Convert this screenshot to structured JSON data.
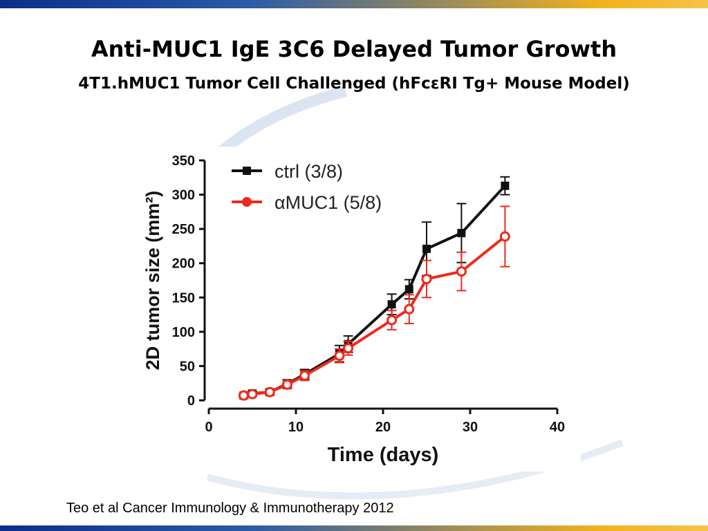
{
  "slide": {
    "title": "Anti-MUC1 IgE 3C6 Delayed Tumor Growth",
    "subtitle": "4T1.hMUC1 Tumor Cell Challenged (hFcεRI Tg+ Mouse Model)",
    "citation": "Teo et al Cancer Immunology  & Immunotherapy 2012",
    "colors": {
      "bar_left": "#0b2e8a",
      "bar_right": "#f6c34a"
    }
  },
  "chart_data": {
    "type": "line",
    "title": "",
    "xlabel": "Time (days)",
    "ylabel": "2D tumor size (mm²)",
    "xlim": [
      0,
      40
    ],
    "ylim": [
      0,
      350
    ],
    "xticks": [
      0,
      10,
      20,
      30,
      40
    ],
    "yticks": [
      0,
      50,
      100,
      150,
      200,
      250,
      300,
      350
    ],
    "grid": false,
    "legend_position": "top-left",
    "series": [
      {
        "name": "ctrl (3/8)",
        "color": "#111111",
        "marker": "square",
        "x": [
          4,
          5,
          7,
          9,
          11,
          15,
          16,
          21,
          23,
          25,
          29,
          34
        ],
        "y": [
          7,
          10,
          12,
          24,
          38,
          68,
          82,
          140,
          162,
          221,
          244,
          313
        ],
        "err": [
          3,
          3,
          4,
          6,
          7,
          12,
          12,
          15,
          14,
          39,
          43,
          13
        ]
      },
      {
        "name": "αMUC1 (5/8)",
        "color": "#ee2a1b",
        "marker": "circle-open",
        "x": [
          4,
          5,
          7,
          9,
          11,
          15,
          16,
          21,
          23,
          25,
          29,
          34
        ],
        "y": [
          7,
          9,
          12,
          23,
          36,
          65,
          76,
          117,
          133,
          177,
          188,
          239
        ],
        "err": [
          3,
          3,
          4,
          6,
          7,
          10,
          10,
          14,
          21,
          27,
          28,
          44
        ]
      }
    ]
  }
}
